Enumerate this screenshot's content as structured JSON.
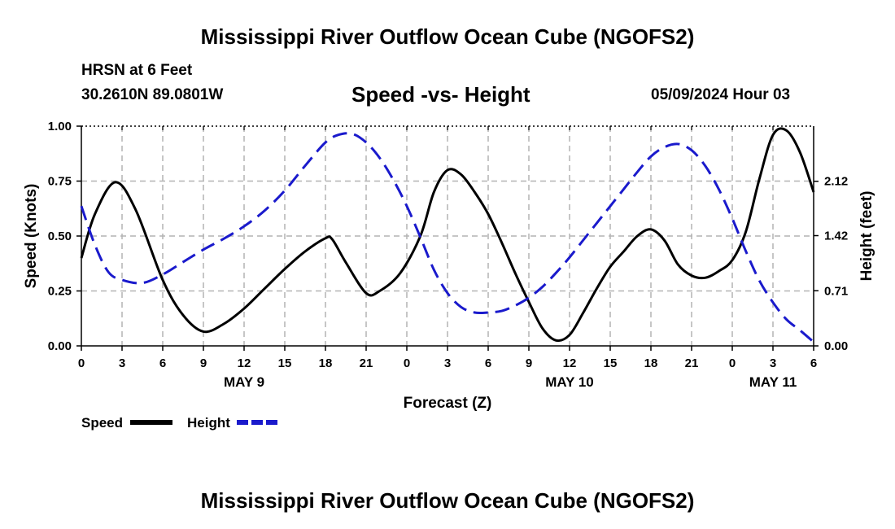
{
  "title": "Mississippi River Outflow Ocean Cube (NGOFS2)",
  "station": "HRSN at 6 Feet",
  "coords": "30.2610N  89.0801W",
  "subtitle": "Speed -vs- Height",
  "timestamp": "05/09/2024 Hour 03",
  "footer_title": "Mississippi River Outflow Ocean Cube (NGOFS2)",
  "chart_data": {
    "type": "line",
    "title": "Speed -vs- Height",
    "xlabel": "Forecast (Z)",
    "ylabel": "Speed (Knots)",
    "y2label": "Height (feet)",
    "xlim": [
      0,
      54
    ],
    "ylim": [
      0,
      1
    ],
    "y2lim": [
      0,
      2.83
    ],
    "x_ticks": [
      0,
      3,
      6,
      9,
      12,
      15,
      18,
      21,
      24,
      27,
      30,
      33,
      36,
      39,
      42,
      45,
      48,
      51,
      54
    ],
    "x_tick_labels": [
      "0",
      "3",
      "6",
      "9",
      "12",
      "15",
      "18",
      "21",
      "0",
      "3",
      "6",
      "9",
      "12",
      "15",
      "18",
      "21",
      "0",
      "3",
      "6"
    ],
    "date_labels": [
      {
        "x": 12,
        "label": "MAY 9"
      },
      {
        "x": 36,
        "label": "MAY 10"
      },
      {
        "x": 51,
        "label": "MAY 11"
      }
    ],
    "y_ticks": [
      0,
      0.25,
      0.5,
      0.75,
      1.0
    ],
    "y_tick_labels": [
      "0.00",
      "0.25",
      "0.50",
      "0.75",
      "1.00"
    ],
    "y2_ticks": [
      0,
      0.71,
      1.42,
      2.12
    ],
    "y2_tick_labels": [
      "0.00",
      "0.71",
      "1.42",
      "2.12"
    ],
    "grid": true,
    "series": [
      {
        "name": "Speed",
        "axis": "left",
        "color": "#000000",
        "dash": "solid",
        "x": [
          0,
          1,
          2.5,
          4,
          6,
          7.5,
          9,
          10.5,
          12,
          13.5,
          15,
          16.5,
          18,
          18.5,
          19.5,
          21,
          22,
          23.5,
          25,
          26,
          27,
          28,
          29,
          30,
          31,
          32,
          33,
          34,
          35,
          36,
          37,
          38,
          39,
          40,
          41,
          42,
          43,
          44,
          45,
          46,
          47,
          48,
          49,
          50,
          51,
          52,
          53,
          54
        ],
        "values": [
          0.4,
          0.6,
          0.745,
          0.62,
          0.3,
          0.14,
          0.065,
          0.1,
          0.17,
          0.26,
          0.35,
          0.43,
          0.49,
          0.485,
          0.38,
          0.24,
          0.25,
          0.33,
          0.5,
          0.7,
          0.8,
          0.78,
          0.7,
          0.6,
          0.47,
          0.33,
          0.2,
          0.08,
          0.025,
          0.05,
          0.15,
          0.26,
          0.36,
          0.43,
          0.5,
          0.53,
          0.48,
          0.37,
          0.32,
          0.31,
          0.34,
          0.39,
          0.52,
          0.76,
          0.96,
          0.98,
          0.88,
          0.7
        ]
      },
      {
        "name": "Height",
        "axis": "right",
        "color": "#1a1acc",
        "dash": "dashed",
        "x": [
          0,
          1,
          2,
          3,
          4.5,
          6,
          7.5,
          9,
          10.5,
          12,
          13.5,
          15,
          16.5,
          18,
          19,
          20,
          21,
          22,
          23,
          24,
          25,
          26,
          27,
          28,
          29,
          30,
          31,
          32,
          33,
          34,
          35,
          36,
          37,
          38,
          39,
          40,
          41,
          42,
          43,
          44,
          45,
          46,
          47,
          48,
          49,
          50,
          51,
          52,
          53,
          54
        ],
        "values": [
          1.8,
          1.3,
          0.95,
          0.85,
          0.81,
          0.92,
          1.08,
          1.24,
          1.38,
          1.54,
          1.74,
          2.0,
          2.32,
          2.62,
          2.72,
          2.73,
          2.62,
          2.42,
          2.14,
          1.8,
          1.4,
          0.98,
          0.68,
          0.5,
          0.43,
          0.43,
          0.45,
          0.52,
          0.62,
          0.76,
          0.94,
          1.14,
          1.36,
          1.58,
          1.8,
          2.02,
          2.24,
          2.44,
          2.56,
          2.6,
          2.52,
          2.32,
          2.02,
          1.64,
          1.22,
          0.84,
          0.56,
          0.34,
          0.2,
          0.05
        ]
      }
    ],
    "legend": [
      {
        "label": "Speed",
        "color": "#000000",
        "dash": "solid"
      },
      {
        "label": "Height",
        "color": "#1a1acc",
        "dash": "dashed"
      }
    ],
    "legend_position": "bottom-left"
  }
}
